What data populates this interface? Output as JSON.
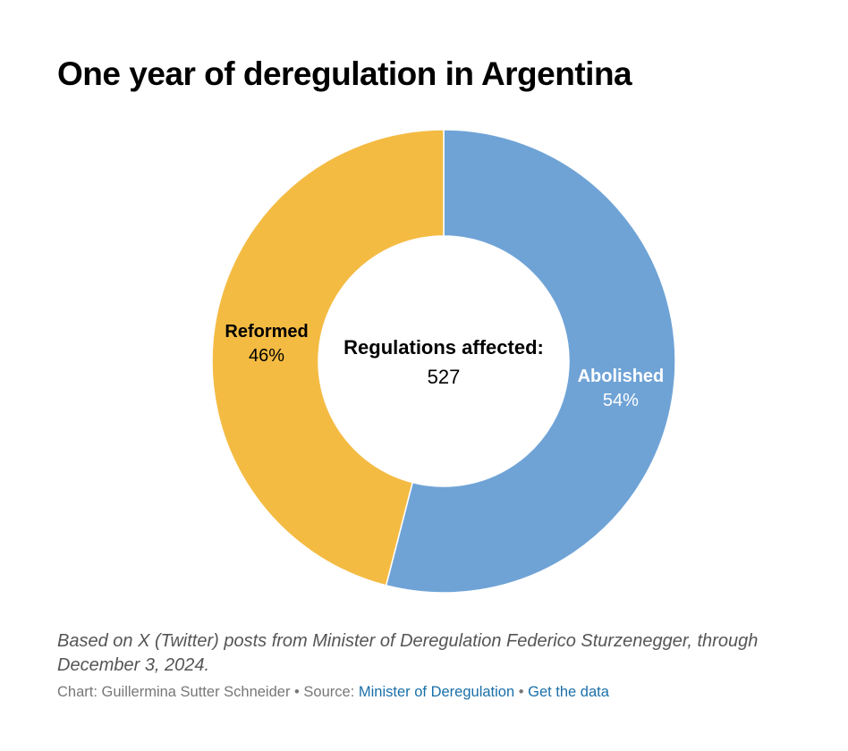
{
  "title": "One year of deregulation in Argentina",
  "chart_data": {
    "type": "pie",
    "donut": true,
    "center_label": {
      "heading": "Regulations affected:",
      "value": "527"
    },
    "slices": [
      {
        "name": "Abolished",
        "value": 54,
        "display": "54%",
        "color": "#6fa3d6",
        "label_color": "#ffffff"
      },
      {
        "name": "Reformed",
        "value": 46,
        "display": "46%",
        "color": "#f4bb43",
        "label_color": "#000000"
      }
    ]
  },
  "note": "Based on X (Twitter) posts from Minister of Deregulation Federico Sturzenegger, through December 3, 2024.",
  "credits": {
    "chart_by": "Chart: Guillermina Sutter Schneider",
    "separator": "•",
    "source_prefix": "Source:",
    "source_link": "Minister of Deregulation",
    "data_link": "Get the data"
  }
}
